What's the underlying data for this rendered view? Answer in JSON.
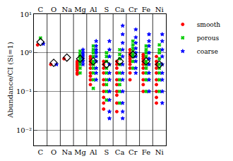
{
  "chart_data": {
    "type": "scatter",
    "y_label": "Abundance/CI (Si=1)",
    "categories": [
      "C",
      "O",
      "Na",
      "Mg",
      "Al",
      "S",
      "Ca",
      "Cr",
      "Fe",
      "Ni"
    ],
    "log": "y",
    "grid": true,
    "legend": "right",
    "ylim": [
      0.004,
      10
    ],
    "yticks": [
      {
        "value": 0.01,
        "label": "10⁻²"
      },
      {
        "value": 0.1,
        "label": "10⁻¹"
      },
      {
        "value": 1,
        "label": "10⁰"
      },
      {
        "value": 10,
        "label": "10¹"
      }
    ],
    "series": [
      {
        "name": "smooth",
        "color": "#ff0000",
        "marker": "circle",
        "values": [
          [
            1.6
          ],
          [
            0.5
          ],
          [
            0.7
          ],
          [
            0.55,
            0.5,
            0.45,
            0.4,
            0.35,
            0.3,
            0.28,
            0.6
          ],
          [
            0.8,
            0.7,
            0.6,
            0.5,
            0.4,
            0.3,
            0.25,
            0.2,
            0.15
          ],
          [
            0.6,
            0.5,
            0.4,
            0.3,
            0.2,
            0.15,
            0.1,
            0.07,
            0.05,
            0.035
          ],
          [
            0.6,
            0.5,
            0.4,
            0.3,
            0.2,
            0.15,
            0.1,
            0.08,
            0.05,
            0.03
          ],
          [
            1.2,
            1.0,
            0.9,
            0.8,
            0.7,
            0.6,
            0.5,
            0.4,
            0.3,
            0.2
          ],
          [
            0.9,
            0.8,
            0.7,
            0.6,
            0.5,
            0.4,
            0.3,
            0.2,
            0.15,
            0.1
          ],
          [
            0.8,
            0.6,
            0.5,
            0.4,
            0.3,
            0.2,
            0.15,
            0.1,
            0.07,
            0.05
          ]
        ]
      },
      {
        "name": "porous",
        "color": "#00cc00",
        "marker": "x",
        "values": [
          [
            2.4
          ],
          [],
          [],
          [
            1.1,
            0.9,
            0.8,
            0.7,
            0.6,
            0.5,
            0.4,
            0.3
          ],
          [
            1.5,
            1.2,
            1.0,
            0.8,
            0.6,
            0.5,
            0.4,
            0.3,
            0.2,
            0.12
          ],
          [
            1.0,
            0.8,
            0.6,
            0.4,
            0.3,
            0.2,
            0.15,
            0.1,
            0.06
          ],
          [
            1.2,
            0.9,
            0.7,
            0.5,
            0.3,
            0.2,
            0.15,
            0.1,
            0.05
          ],
          [
            2.0,
            1.6,
            1.3,
            1.1,
            0.9,
            0.8,
            0.6,
            0.4
          ],
          [
            1.5,
            1.2,
            1.0,
            0.8,
            0.6,
            0.5,
            0.4,
            0.3,
            0.2,
            0.1
          ],
          [
            1.6,
            1.2,
            1.0,
            0.7,
            0.5,
            0.4,
            0.3,
            0.2,
            0.1
          ]
        ]
      },
      {
        "name": "coarse",
        "color": "#0000ff",
        "marker": "star",
        "values": [
          [
            1.7
          ],
          [
            0.5
          ],
          [],
          [
            1.2,
            1.0,
            0.9,
            0.8,
            0.7,
            0.6,
            0.5
          ],
          [
            2.0,
            1.5,
            1.2,
            1.0,
            0.8,
            0.6,
            0.4,
            0.3,
            0.2
          ],
          [
            2.0,
            1.2,
            0.8,
            0.5,
            0.3,
            0.2,
            0.1,
            0.06,
            0.03,
            0.02
          ],
          [
            5.0,
            3.0,
            1.8,
            1.2,
            0.8,
            0.5,
            0.3,
            0.2,
            0.1,
            0.05,
            0.03,
            0.02
          ],
          [
            4.0,
            2.5,
            1.8,
            1.3,
            1.0,
            0.8,
            0.6,
            0.4,
            0.3
          ],
          [
            3.0,
            2.0,
            1.5,
            1.0,
            0.7,
            0.5,
            0.3,
            0.2,
            0.1
          ],
          [
            3.0,
            2.0,
            1.2,
            0.8,
            0.5,
            0.3,
            0.2,
            0.1,
            0.05
          ]
        ]
      }
    ],
    "diamonds": {
      "color": "#000000",
      "marker": "diamond-open",
      "values": [
        1.9,
        0.55,
        0.75,
        0.7,
        0.6,
        0.5,
        0.6,
        0.9,
        0.6,
        0.5
      ]
    }
  }
}
